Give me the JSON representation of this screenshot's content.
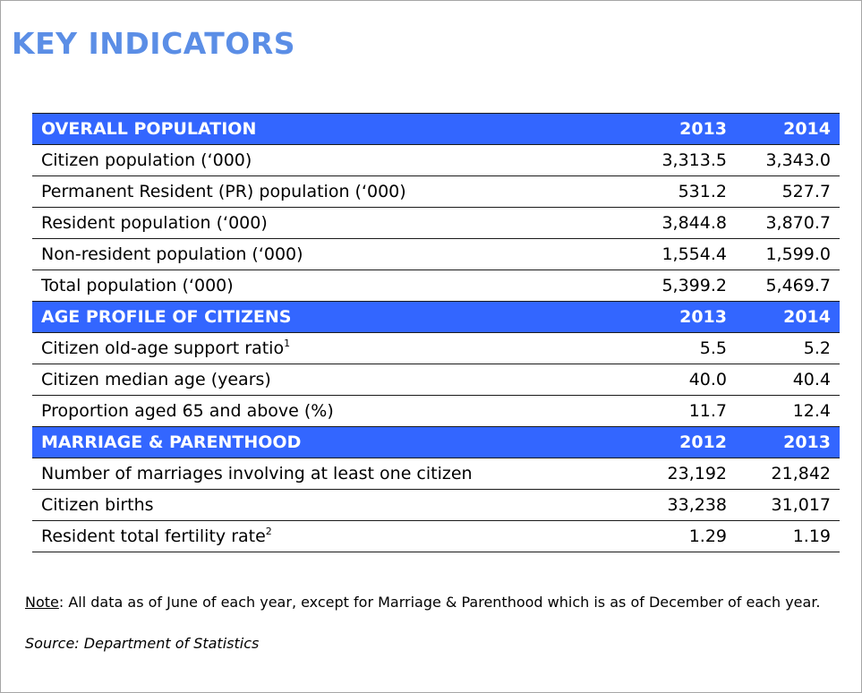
{
  "title": "KEY INDICATORS",
  "sections": [
    {
      "header": "OVERALL POPULATION",
      "years": [
        "2013",
        "2014"
      ],
      "rows": [
        {
          "label": "Citizen population (‘000)",
          "sup": "",
          "values": [
            "3,313.5",
            "3,343.0"
          ]
        },
        {
          "label": "Permanent Resident (PR) population (‘000)",
          "sup": "",
          "values": [
            "531.2",
            "527.7"
          ]
        },
        {
          "label": "Resident population (‘000)",
          "sup": "",
          "values": [
            "3,844.8",
            "3,870.7"
          ]
        },
        {
          "label": "Non-resident population (‘000)",
          "sup": "",
          "values": [
            "1,554.4",
            "1,599.0"
          ]
        },
        {
          "label": "Total population (‘000)",
          "sup": "",
          "values": [
            "5,399.2",
            "5,469.7"
          ]
        }
      ]
    },
    {
      "header": "AGE PROFILE OF CITIZENS",
      "years": [
        "2013",
        "2014"
      ],
      "rows": [
        {
          "label": "Citizen old-age support ratio",
          "sup": "1",
          "values": [
            "5.5",
            "5.2"
          ]
        },
        {
          "label": "Citizen median age (years)",
          "sup": "",
          "values": [
            "40.0",
            "40.4"
          ]
        },
        {
          "label": "Proportion aged 65 and above (%)",
          "sup": "",
          "values": [
            "11.7",
            "12.4"
          ]
        }
      ]
    },
    {
      "header": "MARRIAGE & PARENTHOOD",
      "years": [
        "2012",
        "2013"
      ],
      "rows": [
        {
          "label": "Number of marriages involving at least one citizen",
          "sup": "",
          "values": [
            "23,192",
            "21,842"
          ]
        },
        {
          "label": "Citizen births",
          "sup": "",
          "values": [
            "33,238",
            "31,017"
          ]
        },
        {
          "label": "Resident total fertility rate",
          "sup": "2",
          "values": [
            "1.29",
            "1.19"
          ]
        }
      ]
    }
  ],
  "note": {
    "label": "Note",
    "text": ": All data as of June of each year, except for Marriage & Parenthood which is as of December of each year."
  },
  "source": "Source: Department of Statistics",
  "colors": {
    "title": "#5b8ee6",
    "header_bg": "#3366ff",
    "header_text": "#ffffff"
  }
}
